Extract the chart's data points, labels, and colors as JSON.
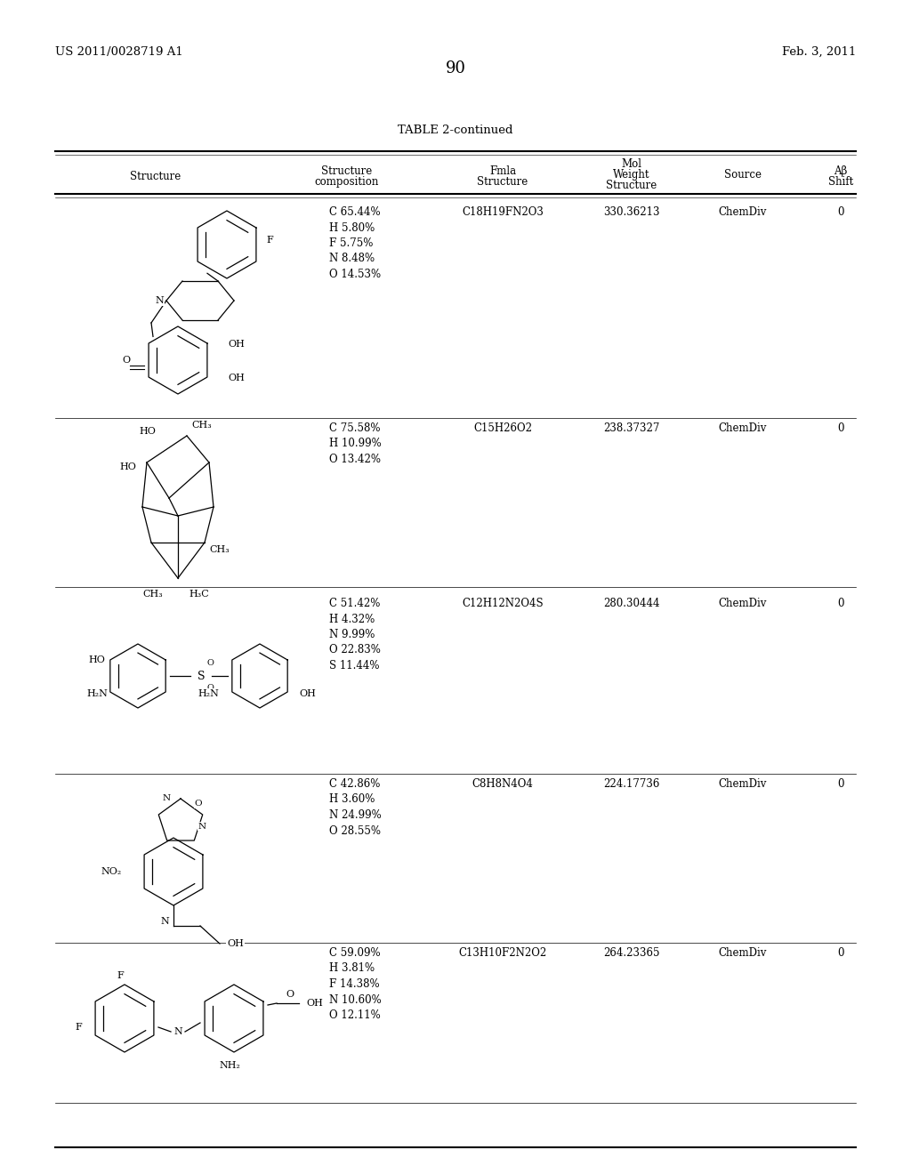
{
  "bg_color": "#ffffff",
  "patent_number": "US 2011/0028719 A1",
  "patent_date": "Feb. 3, 2011",
  "page_number": "90",
  "table_title": "TABLE 2-continued",
  "text_color": "#000000",
  "line_color": "#000000",
  "rows": [
    {
      "composition": "C 65.44%\nH 5.80%\nF 5.75%\nN 8.48%\nO 14.53%",
      "fmla": "C18H19FN2O3",
      "mol_weight": "330.36213",
      "source": "ChemDiv",
      "ab_shift": "0"
    },
    {
      "composition": "C 75.58%\nH 10.99%\nO 13.42%",
      "fmla": "C15H26O2",
      "mol_weight": "238.37327",
      "source": "ChemDiv",
      "ab_shift": "0"
    },
    {
      "composition": "C 51.42%\nH 4.32%\nN 9.99%\nO 22.83%\nS 11.44%",
      "fmla": "C12H12N2O4S",
      "mol_weight": "280.30444",
      "source": "ChemDiv",
      "ab_shift": "0"
    },
    {
      "composition": "C 42.86%\nH 3.60%\nN 24.99%\nO 28.55%",
      "fmla": "C8H8N4O4",
      "mol_weight": "224.17736",
      "source": "ChemDiv",
      "ab_shift": "0"
    },
    {
      "composition": "C 59.09%\nH 3.81%\nF 14.38%\nN 10.60%\nO 12.11%",
      "fmla": "C13H10F2N2O2",
      "mol_weight": "264.23365",
      "source": "ChemDiv",
      "ab_shift": "0"
    }
  ]
}
